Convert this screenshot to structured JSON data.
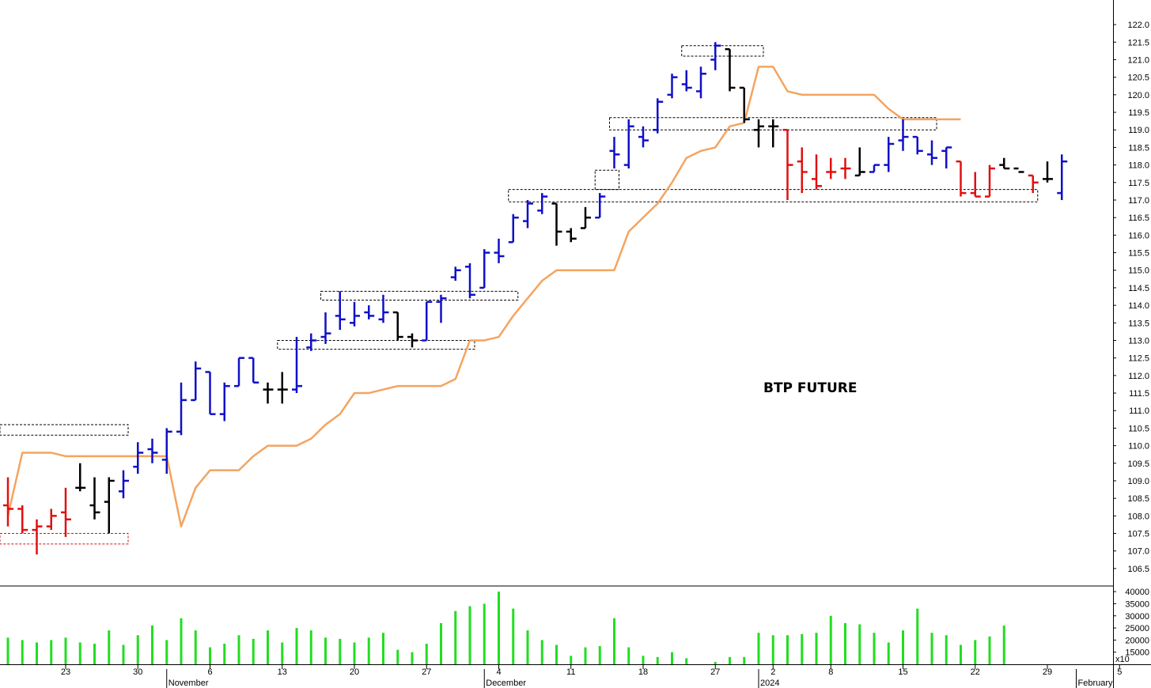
{
  "chart_data": {
    "type": "ohlc",
    "title": "BTP FUTURE",
    "colors": {
      "up": "#1010c8",
      "down": "#e01010",
      "neutral": "#000000",
      "trail": "#f4a460",
      "volume": "#22dd22",
      "zone_box": "#000000",
      "zone_box_low": "#e01010"
    },
    "price_axis": {
      "ylim": [
        106.25,
        122.25
      ],
      "ticks": [
        106.5,
        107.0,
        107.5,
        108.0,
        108.5,
        109.0,
        109.5,
        110.0,
        110.5,
        111.0,
        111.5,
        112.0,
        112.5,
        113.0,
        113.5,
        114.0,
        114.5,
        115.0,
        115.5,
        116.0,
        116.5,
        117.0,
        117.5,
        118.0,
        118.5,
        119.0,
        119.5,
        120.0,
        120.5,
        121.0,
        121.5,
        122.0
      ],
      "tick_labels": [
        "106.5",
        "107.0",
        "107.5",
        "108.0",
        "108.5",
        "109.0",
        "109.5",
        "110.0",
        "110.5",
        "111.0",
        "111.5",
        "112.0",
        "112.5",
        "113.0",
        "113.5",
        "114.0",
        "114.5",
        "115.0",
        "115.5",
        "116.0",
        "116.5",
        "117.0",
        "117.5",
        "118.0",
        "118.5",
        "119.0",
        "119.5",
        "120.0",
        "120.5",
        "121.0",
        "121.5",
        "122.0"
      ]
    },
    "volume_axis": {
      "ylim": [
        10000,
        42000
      ],
      "ticks": [
        15000,
        20000,
        25000,
        30000,
        35000,
        40000
      ],
      "tick_labels": [
        "15000",
        "20000",
        "25000",
        "30000",
        "35000",
        "40000"
      ],
      "multiplier_label": "x10"
    },
    "x_axis": {
      "tick_labels": [
        "6",
        "23",
        "30",
        "6",
        "13",
        "20",
        "27",
        "4",
        "11",
        "18",
        "27",
        "2",
        "8",
        "15",
        "22",
        "29",
        "5"
      ],
      "tick_bar_index": [
        -1,
        4,
        9,
        14,
        19,
        24,
        29,
        34,
        39,
        44,
        49,
        53,
        57,
        62,
        67,
        72,
        77
      ],
      "month_labels": [
        "November",
        "December",
        "2024",
        "February"
      ],
      "month_bar_index": [
        11,
        33,
        52,
        74
      ]
    },
    "bars": [
      {
        "o": 108.3,
        "h": 109.1,
        "l": 107.7,
        "c": 108.2,
        "t": "down"
      },
      {
        "o": 108.2,
        "h": 108.3,
        "l": 107.5,
        "c": 107.6,
        "t": "down"
      },
      {
        "o": 107.6,
        "h": 107.9,
        "l": 106.9,
        "c": 107.7,
        "t": "down"
      },
      {
        "o": 107.7,
        "h": 108.2,
        "l": 107.6,
        "c": 108.0,
        "t": "down"
      },
      {
        "o": 108.1,
        "h": 108.8,
        "l": 107.4,
        "c": 107.9,
        "t": "down"
      },
      {
        "o": 108.8,
        "h": 109.5,
        "l": 108.7,
        "c": 108.8,
        "t": "neutral"
      },
      {
        "o": 108.3,
        "h": 109.1,
        "l": 107.9,
        "c": 108.1,
        "t": "neutral"
      },
      {
        "o": 108.4,
        "h": 109.1,
        "l": 107.5,
        "c": 109.0,
        "t": "neutral"
      },
      {
        "o": 108.7,
        "h": 109.3,
        "l": 108.5,
        "c": 109.0,
        "t": "up"
      },
      {
        "o": 109.4,
        "h": 110.1,
        "l": 109.2,
        "c": 109.8,
        "t": "up"
      },
      {
        "o": 109.9,
        "h": 110.2,
        "l": 109.5,
        "c": 109.8,
        "t": "up"
      },
      {
        "o": 109.6,
        "h": 110.5,
        "l": 109.2,
        "c": 110.4,
        "t": "up"
      },
      {
        "o": 110.4,
        "h": 111.8,
        "l": 110.3,
        "c": 111.3,
        "t": "up"
      },
      {
        "o": 111.3,
        "h": 112.4,
        "l": 111.3,
        "c": 112.2,
        "t": "up"
      },
      {
        "o": 112.1,
        "h": 112.1,
        "l": 110.9,
        "c": 110.9,
        "t": "up"
      },
      {
        "o": 110.9,
        "h": 111.8,
        "l": 110.7,
        "c": 111.7,
        "t": "up"
      },
      {
        "o": 111.7,
        "h": 112.5,
        "l": 111.7,
        "c": 112.5,
        "t": "up"
      },
      {
        "o": 112.5,
        "h": 112.5,
        "l": 111.8,
        "c": 111.8,
        "t": "up"
      },
      {
        "o": 111.6,
        "h": 111.8,
        "l": 111.2,
        "c": 111.6,
        "t": "neutral"
      },
      {
        "o": 111.6,
        "h": 112.1,
        "l": 111.2,
        "c": 111.6,
        "t": "neutral"
      },
      {
        "o": 111.6,
        "h": 113.1,
        "l": 111.5,
        "c": 111.7,
        "t": "up"
      },
      {
        "o": 112.8,
        "h": 113.2,
        "l": 112.7,
        "c": 113.0,
        "t": "up"
      },
      {
        "o": 113.1,
        "h": 113.8,
        "l": 112.9,
        "c": 113.2,
        "t": "up"
      },
      {
        "o": 113.7,
        "h": 114.4,
        "l": 113.3,
        "c": 113.6,
        "t": "up"
      },
      {
        "o": 113.5,
        "h": 114.1,
        "l": 113.4,
        "c": 113.7,
        "t": "up"
      },
      {
        "o": 113.8,
        "h": 114.0,
        "l": 113.6,
        "c": 113.7,
        "t": "up"
      },
      {
        "o": 113.6,
        "h": 114.3,
        "l": 113.5,
        "c": 113.8,
        "t": "up"
      },
      {
        "o": 113.8,
        "h": 113.8,
        "l": 113.0,
        "c": 113.1,
        "t": "neutral"
      },
      {
        "o": 113.1,
        "h": 113.2,
        "l": 112.8,
        "c": 113.0,
        "t": "neutral"
      },
      {
        "o": 113.0,
        "h": 114.1,
        "l": 113.0,
        "c": 114.1,
        "t": "up"
      },
      {
        "o": 114.1,
        "h": 114.3,
        "l": 113.5,
        "c": 114.2,
        "t": "up"
      },
      {
        "o": 114.8,
        "h": 115.1,
        "l": 114.7,
        "c": 115.0,
        "t": "up"
      },
      {
        "o": 115.1,
        "h": 115.2,
        "l": 114.2,
        "c": 114.3,
        "t": "up"
      },
      {
        "o": 114.5,
        "h": 115.6,
        "l": 114.5,
        "c": 115.5,
        "t": "up"
      },
      {
        "o": 115.5,
        "h": 115.9,
        "l": 115.2,
        "c": 115.4,
        "t": "up"
      },
      {
        "o": 115.8,
        "h": 116.6,
        "l": 115.8,
        "c": 116.5,
        "t": "up"
      },
      {
        "o": 116.4,
        "h": 117.0,
        "l": 116.2,
        "c": 116.9,
        "t": "up"
      },
      {
        "o": 116.7,
        "h": 117.2,
        "l": 116.6,
        "c": 117.1,
        "t": "up"
      },
      {
        "o": 116.9,
        "h": 116.9,
        "l": 115.7,
        "c": 116.1,
        "t": "neutral"
      },
      {
        "o": 116.1,
        "h": 116.2,
        "l": 115.8,
        "c": 115.9,
        "t": "neutral"
      },
      {
        "o": 116.2,
        "h": 116.8,
        "l": 116.2,
        "c": 116.5,
        "t": "neutral"
      },
      {
        "o": 116.5,
        "h": 117.2,
        "l": 116.5,
        "c": 117.1,
        "t": "up"
      },
      {
        "o": 118.4,
        "h": 118.8,
        "l": 117.9,
        "c": 118.3,
        "t": "up"
      },
      {
        "o": 118.0,
        "h": 119.3,
        "l": 117.9,
        "c": 119.1,
        "t": "up"
      },
      {
        "o": 118.8,
        "h": 119.1,
        "l": 118.5,
        "c": 118.7,
        "t": "up"
      },
      {
        "o": 119.0,
        "h": 119.9,
        "l": 118.9,
        "c": 119.8,
        "t": "up"
      },
      {
        "o": 120.0,
        "h": 120.6,
        "l": 119.9,
        "c": 120.5,
        "t": "up"
      },
      {
        "o": 120.3,
        "h": 120.7,
        "l": 120.1,
        "c": 120.2,
        "t": "up"
      },
      {
        "o": 120.1,
        "h": 120.8,
        "l": 119.9,
        "c": 120.6,
        "t": "up"
      },
      {
        "o": 121.0,
        "h": 121.5,
        "l": 120.7,
        "c": 121.4,
        "t": "up"
      },
      {
        "o": 121.3,
        "h": 121.3,
        "l": 120.1,
        "c": 120.2,
        "t": "neutral"
      },
      {
        "o": 120.2,
        "h": 120.2,
        "l": 119.2,
        "c": 119.3,
        "t": "neutral"
      },
      {
        "o": 119.0,
        "h": 119.3,
        "l": 118.5,
        "c": 119.1,
        "t": "neutral"
      },
      {
        "o": 119.1,
        "h": 119.3,
        "l": 118.5,
        "c": 119.1,
        "t": "neutral"
      },
      {
        "o": 119.0,
        "h": 119.0,
        "l": 117.0,
        "c": 118.0,
        "t": "down"
      },
      {
        "o": 118.1,
        "h": 118.5,
        "l": 117.2,
        "c": 117.8,
        "t": "down"
      },
      {
        "o": 117.6,
        "h": 118.3,
        "l": 117.3,
        "c": 117.4,
        "t": "down"
      },
      {
        "o": 117.8,
        "h": 118.2,
        "l": 117.6,
        "c": 117.8,
        "t": "down"
      },
      {
        "o": 117.9,
        "h": 118.2,
        "l": 117.6,
        "c": 117.9,
        "t": "down"
      },
      {
        "o": 117.7,
        "h": 118.5,
        "l": 117.7,
        "c": 117.8,
        "t": "neutral"
      },
      {
        "o": 117.8,
        "h": 118.0,
        "l": 117.8,
        "c": 118.0,
        "t": "up"
      },
      {
        "o": 118.0,
        "h": 118.8,
        "l": 117.8,
        "c": 118.6,
        "t": "up"
      },
      {
        "o": 118.7,
        "h": 119.3,
        "l": 118.4,
        "c": 118.8,
        "t": "up"
      },
      {
        "o": 118.8,
        "h": 118.8,
        "l": 118.3,
        "c": 118.4,
        "t": "up"
      },
      {
        "o": 118.3,
        "h": 118.7,
        "l": 118.0,
        "c": 118.2,
        "t": "up"
      },
      {
        "o": 118.4,
        "h": 118.5,
        "l": 117.9,
        "c": 118.5,
        "t": "up"
      },
      {
        "o": 118.1,
        "h": 118.1,
        "l": 117.1,
        "c": 117.2,
        "t": "down"
      },
      {
        "o": 117.2,
        "h": 117.8,
        "l": 117.1,
        "c": 117.1,
        "t": "down"
      },
      {
        "o": 117.1,
        "h": 118.0,
        "l": 117.1,
        "c": 117.9,
        "t": "down"
      },
      {
        "o": 118.0,
        "h": 118.2,
        "l": 117.9,
        "c": 117.9,
        "t": "neutral"
      },
      {
        "o": 117.9,
        "h": 117.9,
        "l": 117.9,
        "c": 117.8,
        "t": "neutral"
      },
      {
        "o": 117.7,
        "h": 117.7,
        "l": 117.2,
        "c": 117.5,
        "t": "down"
      },
      {
        "o": 117.6,
        "h": 118.1,
        "l": 117.5,
        "c": 117.6,
        "t": "neutral"
      },
      {
        "o": 117.2,
        "h": 118.3,
        "l": 117.0,
        "c": 118.1,
        "t": "up"
      }
    ],
    "volume": [
      21000,
      20000,
      19000,
      20000,
      21000,
      19000,
      18500,
      24000,
      18000,
      22000,
      26000,
      20000,
      29000,
      24000,
      17000,
      18500,
      22000,
      20500,
      24000,
      19000,
      25000,
      24000,
      21000,
      20500,
      19000,
      21000,
      23000,
      16000,
      15000,
      18500,
      27000,
      32000,
      34000,
      35000,
      40000,
      33000,
      24000,
      20000,
      18000,
      13500,
      17000,
      17500,
      29000,
      17000,
      13500,
      13000,
      15000,
      12500,
      10000,
      11000,
      13000,
      13000,
      23000,
      22000,
      22000,
      22500,
      23000,
      30000,
      27000,
      26500,
      23000,
      19000,
      24000,
      33000,
      23000,
      22000,
      18000,
      20000,
      21500,
      26000
    ],
    "trail_line": [
      108.0,
      109.8,
      109.8,
      109.8,
      109.7,
      109.7,
      109.7,
      109.7,
      109.7,
      109.7,
      109.7,
      109.7,
      107.7,
      108.8,
      109.3,
      109.3,
      109.3,
      109.7,
      110.0,
      110.0,
      110.0,
      110.2,
      110.6,
      110.9,
      111.5,
      111.5,
      111.6,
      111.7,
      111.7,
      111.7,
      111.7,
      111.9,
      113.0,
      113.0,
      113.1,
      113.7,
      114.2,
      114.7,
      115.0,
      115.0,
      115.0,
      115.0,
      115.0,
      116.1,
      116.5,
      116.9,
      117.5,
      118.2,
      118.4,
      118.5,
      119.1,
      119.2,
      120.8,
      120.8,
      120.1,
      120.0,
      120.0,
      120.0,
      120.0,
      120.0,
      120.0,
      119.6,
      119.3,
      119.3,
      119.3,
      119.3,
      119.3
    ],
    "zones": [
      {
        "b0": -1,
        "b1": 8,
        "hi": 110.6,
        "lo": 110.3,
        "color": "zone_box"
      },
      {
        "b0": -1,
        "b1": 8,
        "hi": 107.5,
        "lo": 107.2,
        "color": "zone_box_low"
      },
      {
        "b0": 19,
        "b1": 32,
        "hi": 113.0,
        "lo": 112.75,
        "color": "zone_box"
      },
      {
        "b0": 22,
        "b1": 35,
        "hi": 114.4,
        "lo": 114.15,
        "color": "zone_box"
      },
      {
        "b0": 35,
        "b1": 71,
        "hi": 117.3,
        "lo": 116.95,
        "color": "zone_box"
      },
      {
        "b0": 41,
        "b1": 42,
        "hi": 117.85,
        "lo": 117.3,
        "color": "zone_box"
      },
      {
        "b0": 42,
        "b1": 64,
        "hi": 119.35,
        "lo": 119.0,
        "color": "zone_box"
      },
      {
        "b0": 47,
        "b1": 52,
        "hi": 121.4,
        "lo": 121.1,
        "color": "zone_box"
      }
    ]
  }
}
